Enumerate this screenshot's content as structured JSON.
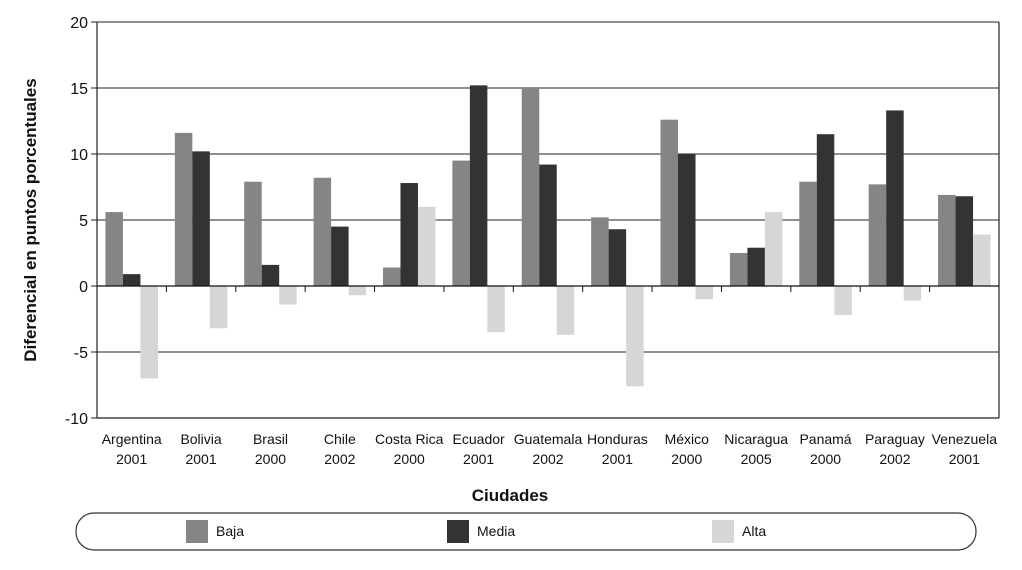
{
  "chart_data": {
    "type": "bar",
    "title": "",
    "xlabel": "Ciudades",
    "ylabel": "Diferencial en puntos porcentuales",
    "ylim": [
      -10,
      20
    ],
    "yticks": [
      20,
      15,
      10,
      5,
      0,
      -5,
      -10
    ],
    "grid": true,
    "categories": [
      {
        "name": "Argentina",
        "year": "2001"
      },
      {
        "name": "Bolivia",
        "year": "2001"
      },
      {
        "name": "Brasil",
        "year": "2000"
      },
      {
        "name": "Chile",
        "year": "2002"
      },
      {
        "name": "Costa Rica",
        "year": "2000"
      },
      {
        "name": "Ecuador",
        "year": "2001"
      },
      {
        "name": "Guatemala",
        "year": "2002"
      },
      {
        "name": "Honduras",
        "year": "2001"
      },
      {
        "name": "México",
        "year": "2000"
      },
      {
        "name": "Nicaragua",
        "year": "2005"
      },
      {
        "name": "Panamá",
        "year": "2000"
      },
      {
        "name": "Paraguay",
        "year": "2002"
      },
      {
        "name": "Venezuela",
        "year": "2001"
      }
    ],
    "series": [
      {
        "name": "Baja",
        "color": "#858585",
        "values": [
          5.6,
          11.6,
          7.9,
          8.2,
          1.4,
          9.5,
          15.0,
          5.2,
          12.6,
          2.5,
          7.9,
          7.7,
          6.9
        ]
      },
      {
        "name": "Media",
        "color": "#333333",
        "values": [
          0.9,
          10.2,
          1.6,
          4.5,
          7.8,
          15.2,
          9.2,
          4.3,
          10.0,
          2.9,
          11.5,
          13.3,
          6.8
        ]
      },
      {
        "name": "Alta",
        "color": "#d6d6d6",
        "values": [
          -7.0,
          -3.2,
          -1.4,
          -0.7,
          6.0,
          -3.5,
          -3.7,
          -7.6,
          -1.0,
          5.6,
          -2.2,
          -1.1,
          3.9
        ]
      }
    ],
    "legend": {
      "position": "bottom",
      "items": [
        "Baja",
        "Media",
        "Alta"
      ]
    }
  }
}
